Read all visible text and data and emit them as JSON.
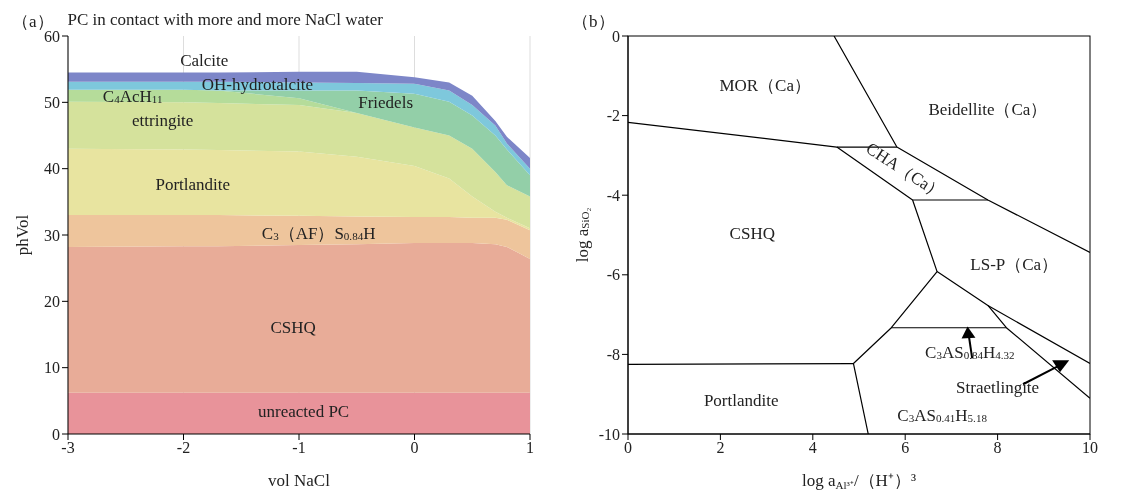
{
  "chart_data": [
    {
      "type": "area",
      "stacked": true,
      "title": "PC in contact with more and more NaCl water",
      "xlabel": "vol NaCl",
      "ylabel": "phVol",
      "annotations": [
        "（a）"
      ],
      "x": [
        -3,
        -2,
        -1.7,
        -1,
        -0.5,
        0,
        0.3,
        0.5,
        0.7,
        0.8,
        1
      ],
      "xlim": [
        -3,
        1
      ],
      "xticks": [
        -3,
        -2,
        -1,
        0,
        1
      ],
      "ylim": [
        0,
        60
      ],
      "yticks": [
        0,
        10,
        20,
        30,
        40,
        50,
        60
      ],
      "grid": "x",
      "series": [
        {
          "name": "unreacted PC",
          "color": "#e8939a",
          "values": [
            6.2,
            6.2,
            6.2,
            6.2,
            6.2,
            6.2,
            6.2,
            6.2,
            6.2,
            6.2,
            6.2
          ]
        },
        {
          "name": "CSHQ",
          "color": "#e8ac98",
          "values": [
            22.0,
            22.1,
            22.1,
            22.3,
            22.4,
            22.6,
            22.6,
            22.6,
            22.4,
            22.0,
            20.2
          ]
        },
        {
          "name": "C$_{3}$（AF）S$_{0.84}$H",
          "color": "#eec59c",
          "values": [
            4.8,
            4.7,
            4.7,
            4.4,
            4.2,
            3.9,
            3.9,
            3.8,
            4.0,
            4.1,
            4.3
          ]
        },
        {
          "name": "Portlandite",
          "color": "#e8e4a0",
          "values": [
            10.0,
            9.9,
            9.8,
            9.7,
            9.0,
            7.7,
            5.8,
            3.2,
            0.9,
            0.3,
            0.3
          ]
        },
        {
          "name": "ettringite",
          "color": "#d5e29c",
          "values": [
            7.1,
            7.1,
            7.1,
            7.0,
            6.6,
            5.8,
            6.5,
            7.2,
            6.0,
            4.9,
            4.8
          ]
        },
        {
          "name": "C$_{4}$AcH$_{11}$",
          "color": "#b5dc9a",
          "values": [
            1.8,
            1.9,
            1.9,
            1.0,
            0,
            null,
            null,
            null,
            null,
            null,
            null
          ]
        },
        {
          "name": "Friedels",
          "color": "#93cfa8",
          "values": [
            null,
            null,
            0,
            1.2,
            3.4,
            5.1,
            5.1,
            5.0,
            5.5,
            5.4,
            3.2
          ]
        },
        {
          "name": "OH-hydrotalcite",
          "color": "#7ec8dc",
          "values": [
            1.2,
            1.2,
            1.3,
            1.2,
            1.1,
            1.5,
            1.7,
            1.6,
            1.5,
            0.9,
            1.0
          ]
        },
        {
          "name": "Calcite",
          "color": "#7d86c8",
          "values": [
            1.4,
            1.4,
            1.4,
            1.6,
            1.7,
            1.0,
            1.2,
            1.4,
            0.7,
            1.0,
            1.6
          ]
        }
      ]
    },
    {
      "type": "line",
      "xlabel": "log a$_{Al³⁺}$/（H⁺）³",
      "ylabel": "log a$_{SiO₂}$",
      "marker": "none",
      "xlim": [
        0,
        10
      ],
      "xticks": [
        0,
        2,
        4,
        6,
        8,
        10
      ],
      "ylim": [
        -10,
        0
      ],
      "yticks": [
        -10,
        -8,
        -6,
        -4,
        -2,
        0
      ],
      "annotations": [
        "（b）",
        "MOR（Ca）",
        "Beidellite（Ca）",
        "CHA（Ca）",
        "CSHQ",
        "LS-P（Ca）",
        "C$_{3}$AS$_{0.84}$H$_{4.32}$",
        "Straetlingite",
        "Portlandite",
        "C$_{3}$AS$_{0.41}$H$_{5.18}$"
      ],
      "series": [
        {
          "color": "#000000",
          "x": [
            4.46,
            5.82,
            7.79,
            10
          ],
          "values": [
            0,
            -2.79,
            -4.12,
            -5.44
          ]
        },
        {
          "color": "#000000",
          "x": [
            0,
            4.52,
            5.82
          ],
          "values": [
            -2.17,
            -2.79,
            -2.79
          ]
        },
        {
          "color": "#000000",
          "x": [
            4.52,
            6.16,
            6.69,
            5.7,
            4.88,
            5.2
          ],
          "values": [
            -2.79,
            -4.12,
            -5.92,
            -7.33,
            -8.23,
            -10
          ]
        },
        {
          "color": "#000000",
          "x": [
            6.16,
            7.79
          ],
          "values": [
            -4.12,
            -4.12
          ]
        },
        {
          "color": "#000000",
          "x": [
            6.69,
            7.79,
            10
          ],
          "values": [
            -5.92,
            -6.77,
            -8.23
          ]
        },
        {
          "color": "#000000",
          "x": [
            5.7,
            8.19
          ],
          "values": [
            -7.33,
            -7.33
          ]
        },
        {
          "color": "#000000",
          "x": [
            7.79,
            8.19,
            10
          ],
          "values": [
            -6.77,
            -7.33,
            -9.1
          ]
        },
        {
          "color": "#000000",
          "x": [
            0,
            4.88
          ],
          "values": [
            -8.25,
            -8.23
          ]
        }
      ]
    }
  ]
}
